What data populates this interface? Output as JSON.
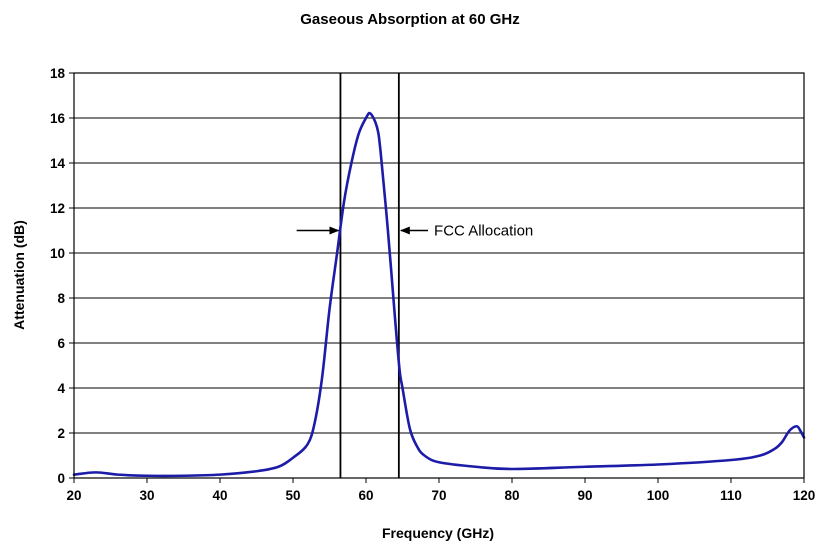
{
  "chart_data": {
    "type": "line",
    "title": "Gaseous Absorption at 60 GHz",
    "xlabel": "Frequency (GHz)",
    "ylabel": "Attenuation (dB)",
    "xlim": [
      20,
      120
    ],
    "ylim": [
      0,
      18
    ],
    "xticks": [
      20,
      30,
      40,
      50,
      60,
      70,
      80,
      90,
      100,
      110,
      120
    ],
    "yticks": [
      0,
      2,
      4,
      6,
      8,
      10,
      12,
      14,
      16,
      18
    ],
    "grid": "horizontal",
    "legend": "none",
    "series": [
      {
        "color": "#1c1ca8",
        "x": [
          20,
          23,
          26,
          30,
          35,
          40,
          45,
          48,
          50,
          52,
          53,
          54,
          55,
          56,
          57,
          58,
          59,
          60,
          60.6,
          61.5,
          62,
          63,
          64,
          64.6,
          65,
          66,
          67,
          68,
          70,
          75,
          80,
          90,
          100,
          110,
          114,
          116,
          117,
          118,
          119,
          119.5,
          120
        ],
        "y": [
          0.15,
          0.25,
          0.15,
          0.1,
          0.1,
          0.15,
          0.3,
          0.5,
          0.9,
          1.5,
          2.5,
          4.5,
          7.5,
          9.9,
          12.3,
          14.0,
          15.3,
          16.0,
          16.2,
          15.6,
          14.5,
          11.0,
          7.0,
          4.8,
          4.0,
          2.2,
          1.4,
          1.0,
          0.7,
          0.5,
          0.4,
          0.5,
          0.6,
          0.8,
          1.0,
          1.3,
          1.6,
          2.1,
          2.3,
          2.1,
          1.8
        ]
      }
    ],
    "vlines": [
      56.5,
      64.5
    ],
    "annotation": {
      "text": "FCC Allocation",
      "y": 11.0,
      "arrow_left_from": 50.5,
      "arrow_right_from": 68.5
    },
    "line_color": "#1c1ca8",
    "grid_color": "#000000"
  }
}
